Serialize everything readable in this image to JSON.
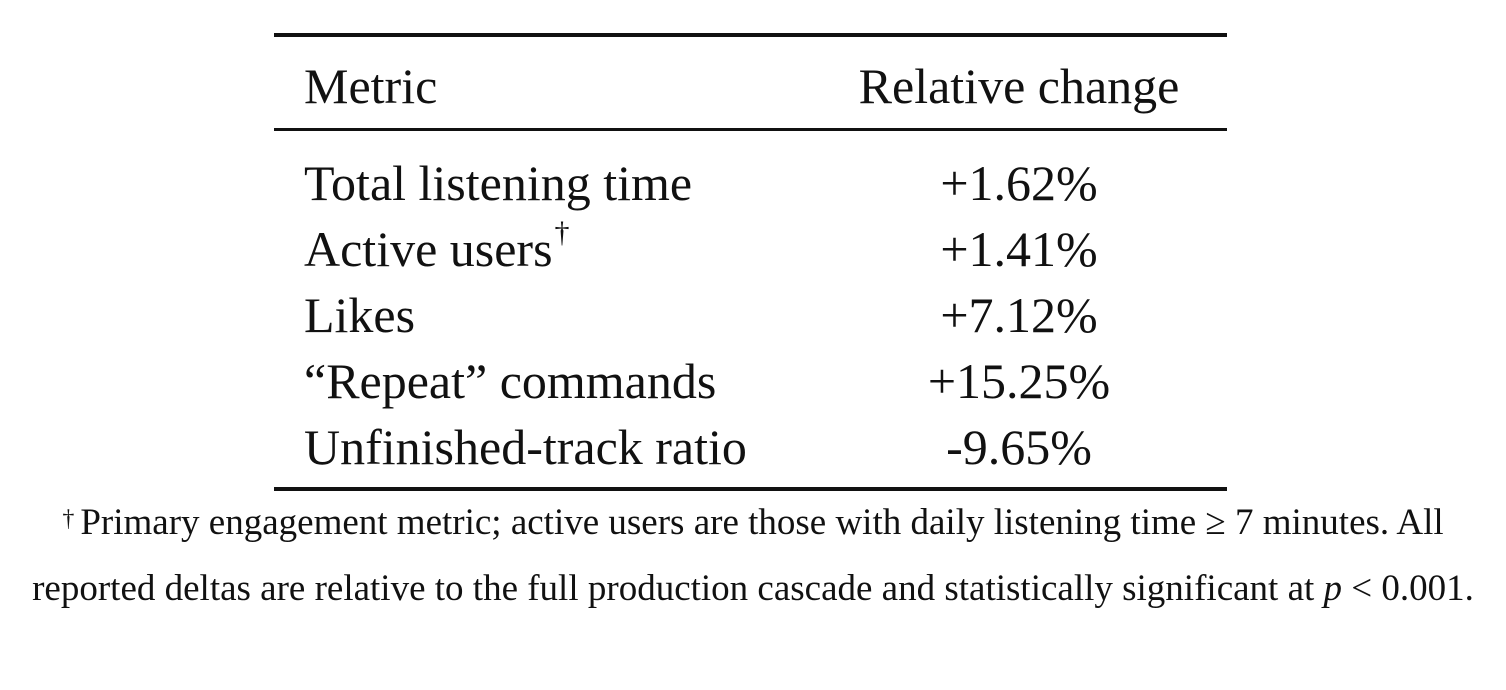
{
  "table": {
    "headers": {
      "metric": "Metric",
      "change": "Relative change"
    },
    "rows": [
      {
        "metric": "Total listening time",
        "marker": "",
        "change": "+1.62%"
      },
      {
        "metric": "Active users",
        "marker": "†",
        "change": "+1.41%"
      },
      {
        "metric": "Likes",
        "marker": "",
        "change": "+7.12%"
      },
      {
        "metric": "“Repeat” commands",
        "marker": "",
        "change": "+15.25%"
      },
      {
        "metric": "Unfinished-track ratio",
        "marker": "",
        "change": "-9.65%"
      }
    ]
  },
  "footnote": {
    "marker": "†",
    "text_before_var": "Primary engagement metric; active users are those with daily listening time ≥ 7 minutes. All reported deltas are relative to the full production cascade and statistically significant at",
    "var": "p",
    "text_after_var": "< 0.001."
  }
}
